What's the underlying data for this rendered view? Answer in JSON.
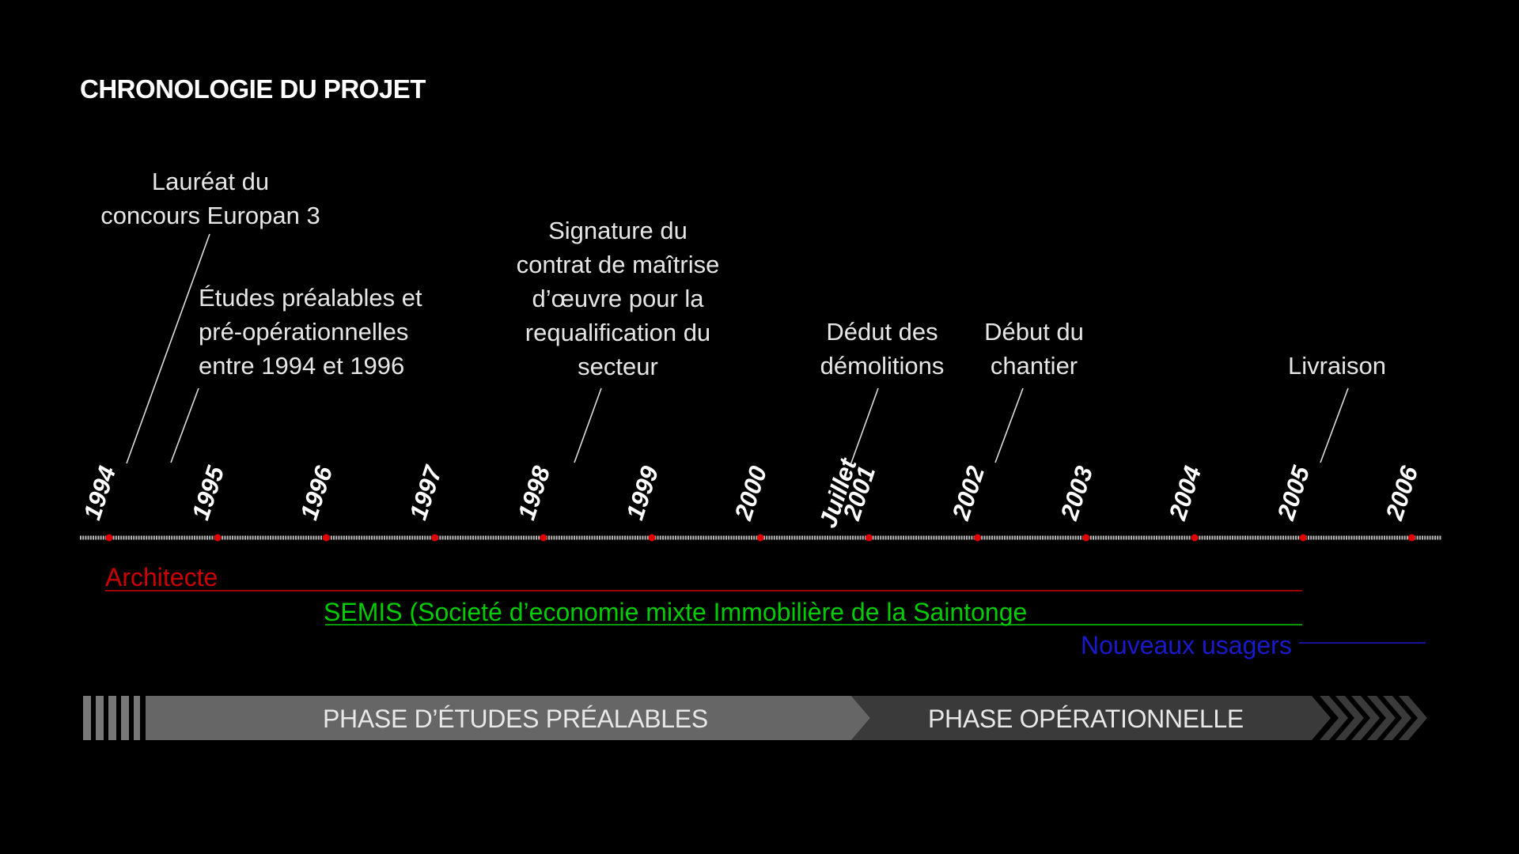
{
  "title": "CHRONOLOGIE DU PROJET",
  "years": [
    "1994",
    "1995",
    "1996",
    "1997",
    "1998",
    "1999",
    "2000",
    "2001",
    "2002",
    "2003",
    "2004",
    "2005",
    "2006"
  ],
  "juillet_label": "Juillet",
  "events": [
    {
      "text": "Lauréat du\nconcours Europan 3"
    },
    {
      "text": "Études préalables et\npré-opérationnelles\nentre 1994 et 1996"
    },
    {
      "text": "Signature du\ncontrat de maîtrise\nd’œuvre pour la\nrequalification du\nsecteur"
    },
    {
      "text": "Dédut des\ndémolitions"
    },
    {
      "text": "Début du\nchantier"
    },
    {
      "text": "Livraison"
    }
  ],
  "actors": [
    {
      "label": "Architecte",
      "color": "#cc0000"
    },
    {
      "label": "SEMIS (Societé d’economie mixte Immobilière de la Saintonge",
      "color": "#00cc00"
    },
    {
      "label": "Nouveaux usagers",
      "color": "#1a1acc"
    }
  ],
  "phases": {
    "etudes": "PHASE  D’ÉTUDES PRÉALABLES",
    "operationnelle": "PHASE  OPÉRATIONNELLE"
  },
  "colors": {
    "background": "#000000",
    "axis": "#bbbbbb",
    "tick_dot": "#e00000",
    "phase_light": "#666666",
    "phase_dark": "#3a3a3a"
  }
}
